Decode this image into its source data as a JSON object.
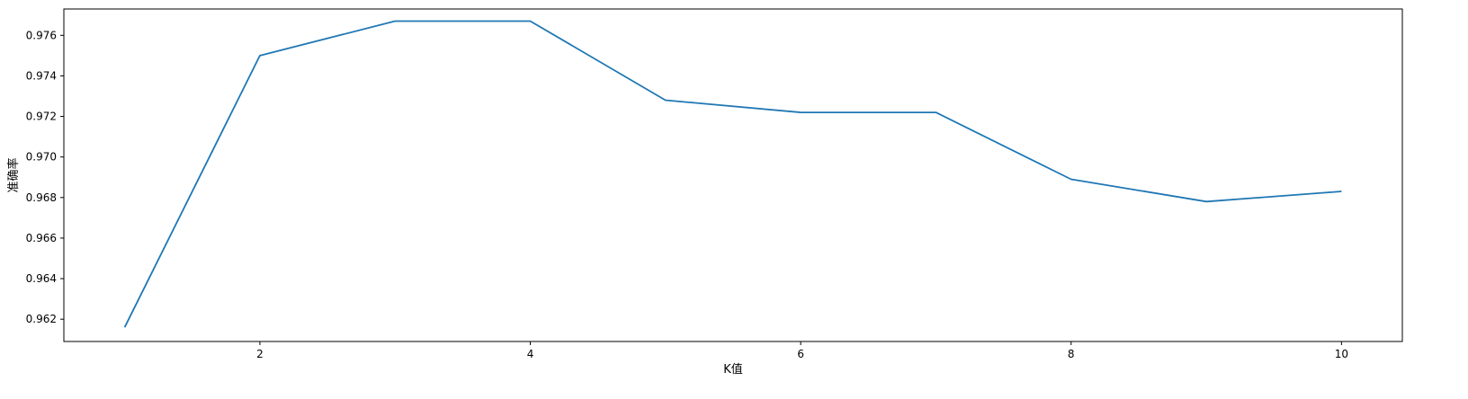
{
  "chart_data": {
    "type": "line",
    "title": "",
    "xlabel": "K值",
    "ylabel": "准确率",
    "xlim": [
      0.55,
      10.45
    ],
    "ylim": [
      0.9609,
      0.9773
    ],
    "xticks": [
      2,
      4,
      6,
      8,
      10
    ],
    "yticks": [
      0.962,
      0.964,
      0.966,
      0.968,
      0.97,
      0.972,
      0.974,
      0.976
    ],
    "grid": false,
    "series": [
      {
        "color": "#1f77b4",
        "x": [
          1,
          2,
          3,
          4,
          5,
          6,
          7,
          8,
          9,
          10
        ],
        "y": [
          0.9616,
          0.975,
          0.9767,
          0.9767,
          0.9728,
          0.9722,
          0.9722,
          0.9689,
          0.9678,
          0.9683
        ]
      }
    ]
  }
}
